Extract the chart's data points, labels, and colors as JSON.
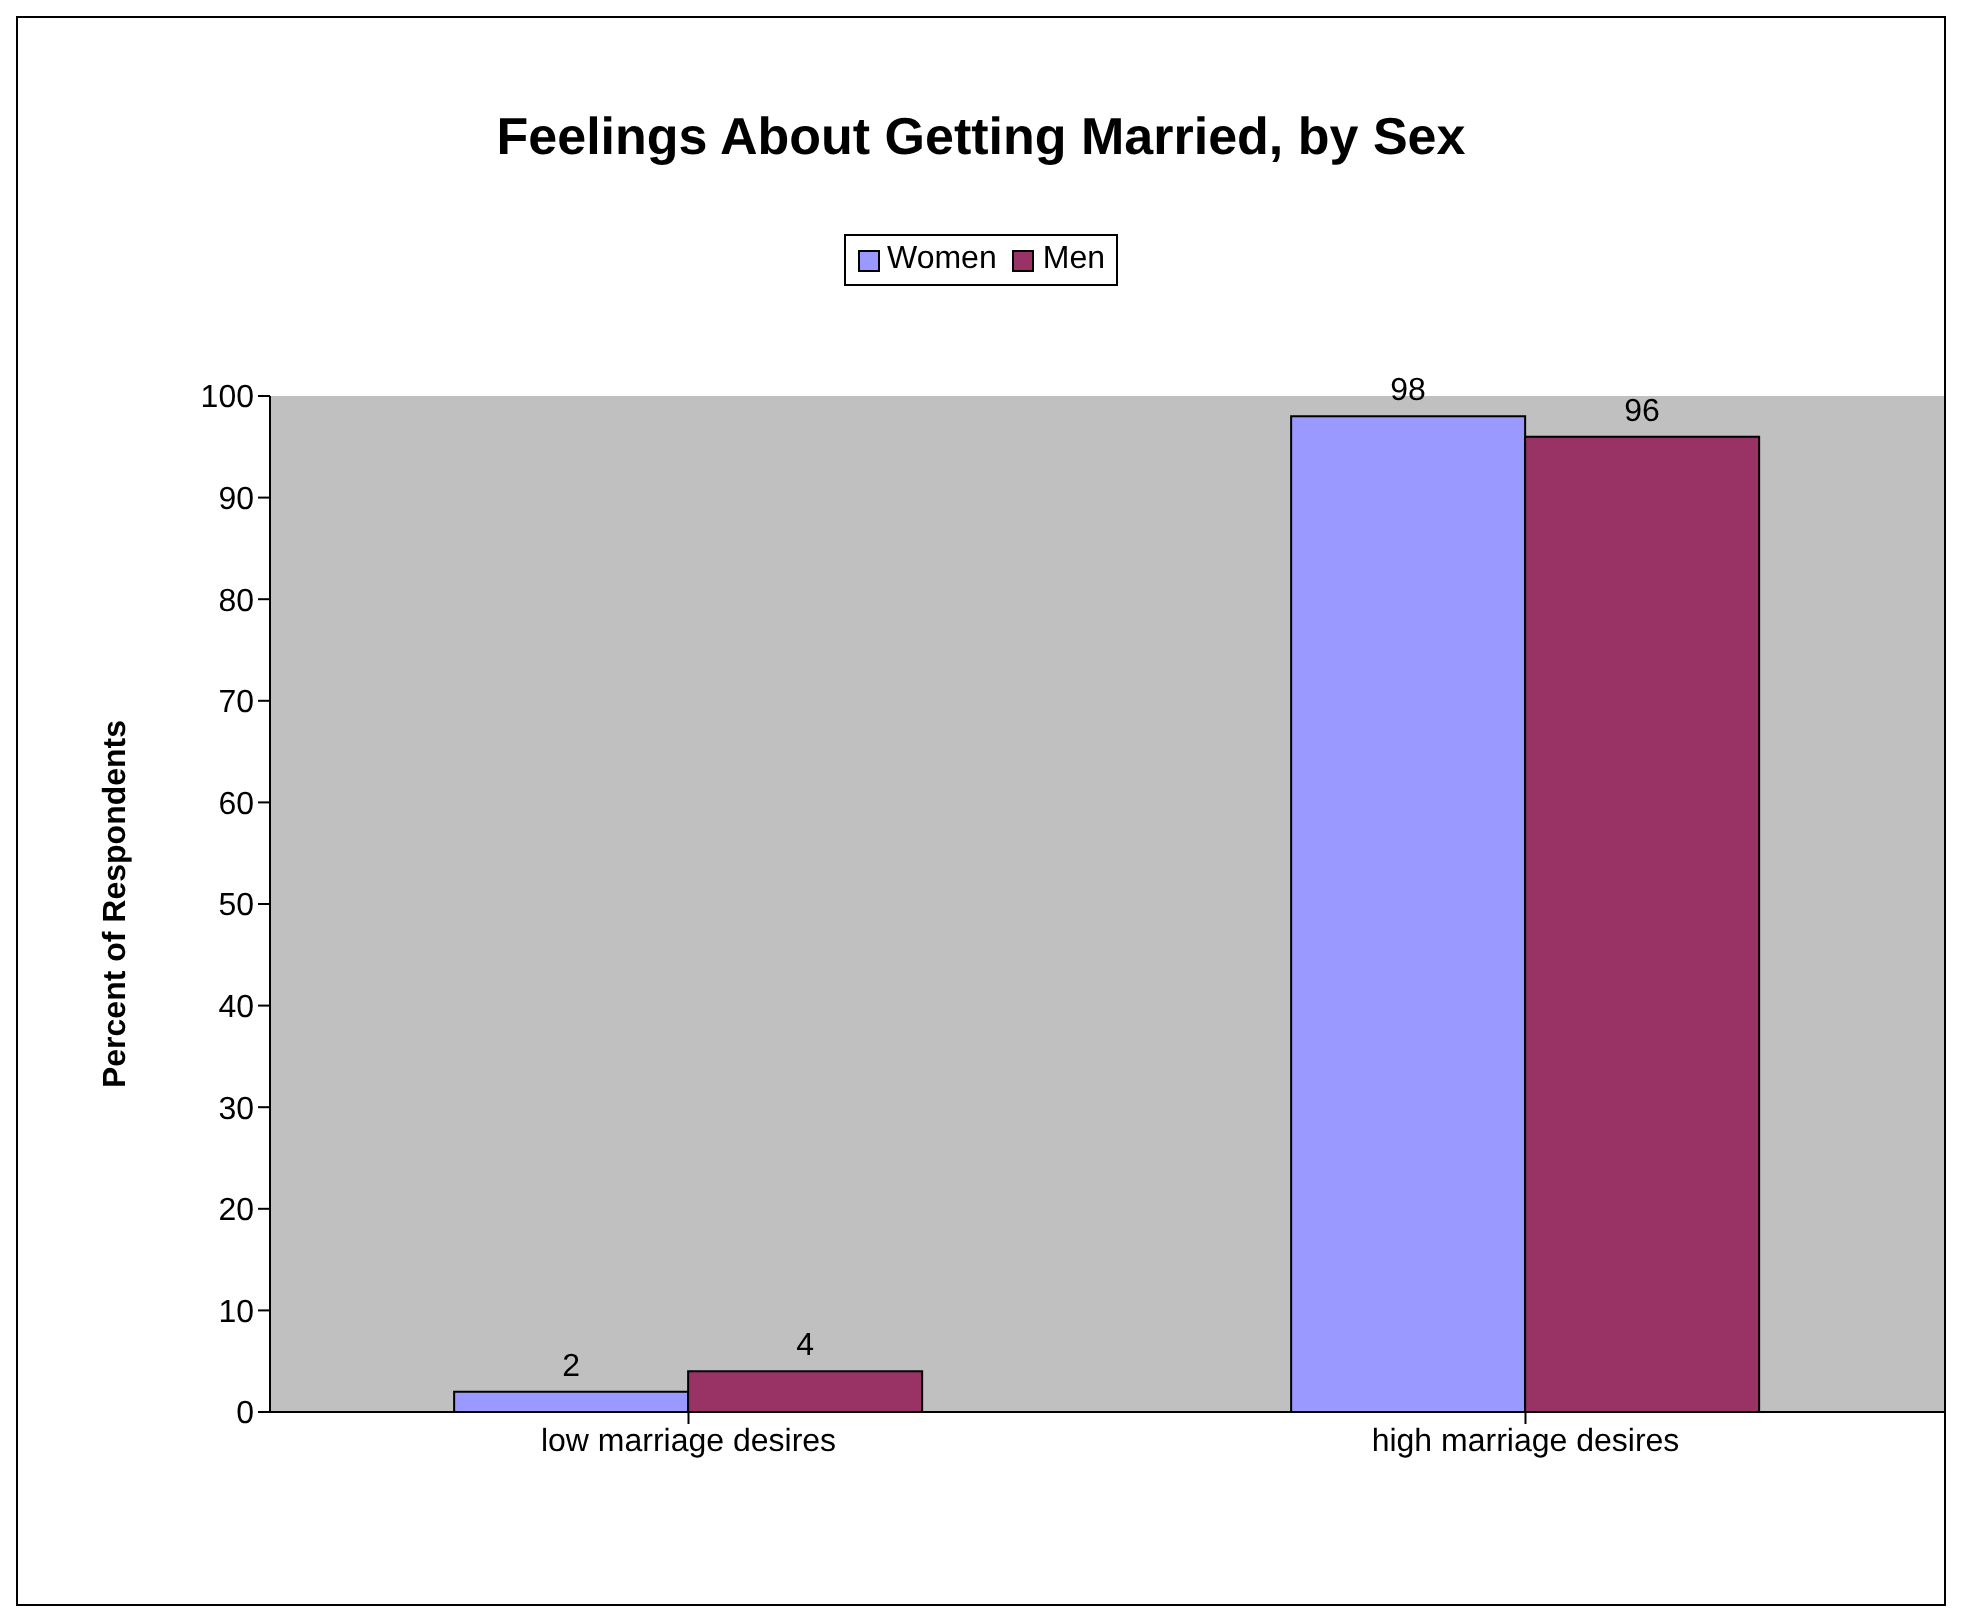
{
  "chart_data": {
    "type": "bar",
    "title": "Feelings About Getting Married, by Sex",
    "ylabel": "Percent of Respondents",
    "categories": [
      "low  marriage desires",
      "high marriage desires"
    ],
    "series": [
      {
        "name": "Women",
        "color": "#9999ff",
        "values": [
          2,
          98
        ]
      },
      {
        "name": "Men",
        "color": "#993366",
        "values": [
          4,
          96
        ]
      }
    ],
    "ylim": [
      0,
      100
    ],
    "yticks": [
      0,
      10,
      20,
      30,
      40,
      50,
      60,
      70,
      80,
      90,
      100
    ],
    "grid": false,
    "legend": "top",
    "data_labels": true
  }
}
